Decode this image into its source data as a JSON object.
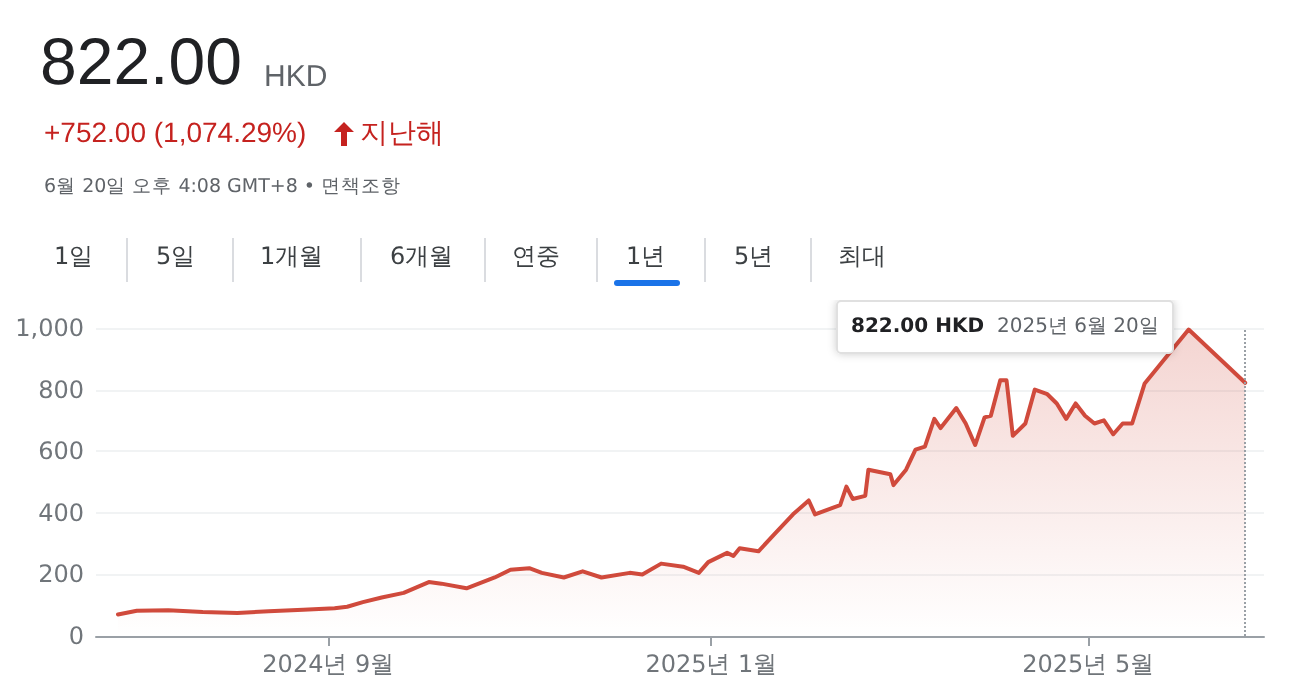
{
  "chart_data": {
    "type": "area",
    "title": "822.00",
    "annotations": [
      "HKD",
      "+752.00 (1,074.29%)",
      "지난해",
      "6월 20일 오후 4:08 GMT+8 • 면책조항",
      "822.00 HKD",
      "2025년 6월 20일",
      "1일",
      "5일",
      "1개월",
      "6개월",
      "연중",
      "1년",
      "5년",
      "최대"
    ],
    "x": [
      "2024-06-26",
      "2024-07-02",
      "2024-07-12",
      "2024-07-23",
      "2024-08-03",
      "2024-08-13",
      "2024-08-24",
      "2024-09-03",
      "2024-09-07",
      "2024-09-12",
      "2024-09-18",
      "2024-09-25",
      "2024-10-03",
      "2024-10-07",
      "2024-10-15",
      "2024-10-24",
      "2024-10-29",
      "2024-11-04",
      "2024-11-08",
      "2024-11-15",
      "2024-11-21",
      "2024-11-27",
      "2024-12-06",
      "2024-12-10",
      "2024-12-16",
      "2024-12-23",
      "2024-12-28",
      "2024-12-31",
      "2025-01-06",
      "2025-01-08",
      "2025-01-10",
      "2025-01-16",
      "2025-01-21",
      "2025-01-27",
      "2025-02-01",
      "2025-02-03",
      "2025-02-11",
      "2025-02-13",
      "2025-02-15",
      "2025-02-19",
      "2025-02-20",
      "2025-02-27",
      "2025-02-28",
      "2025-03-04",
      "2025-03-07",
      "2025-03-10",
      "2025-03-13",
      "2025-03-15",
      "2025-03-20",
      "2025-03-23",
      "2025-03-26",
      "2025-03-29",
      "2025-03-31",
      "2025-04-03",
      "2025-04-05",
      "2025-04-07",
      "2025-04-11",
      "2025-04-14",
      "2025-04-18",
      "2025-04-21",
      "2025-04-24",
      "2025-04-27",
      "2025-04-30",
      "2025-05-03",
      "2025-05-06",
      "2025-05-09",
      "2025-05-12",
      "2025-05-15",
      "2025-05-19",
      "2025-06-02",
      "2025-06-20"
    ],
    "series": [
      {
        "color": "#d04a3c",
        "values": [
          70,
          82,
          84,
          78,
          75,
          80,
          85,
          90,
          95,
          110,
          125,
          140,
          175,
          170,
          155,
          190,
          215,
          220,
          205,
          190,
          210,
          190,
          205,
          200,
          235,
          225,
          205,
          240,
          270,
          260,
          285,
          275,
          330,
          395,
          440,
          395,
          425,
          485,
          445,
          455,
          540,
          525,
          490,
          540,
          605,
          615,
          705,
          675,
          740,
          690,
          620,
          710,
          715,
          830,
          830,
          650,
          690,
          800,
          785,
          755,
          705,
          755,
          715,
          690,
          700,
          655,
          690,
          690,
          820,
          995,
          822
        ]
      }
    ],
    "xlim": [
      "2024-06-19",
      "2025-06-26"
    ],
    "xticks": [
      {
        "value": "2024-09",
        "label": "2024년 9월"
      },
      {
        "value": "2025-01",
        "label": "2025년 1월"
      },
      {
        "value": "2025-05",
        "label": "2025년 5월"
      }
    ],
    "ylim": [
      0,
      1000
    ],
    "yticks": [
      0,
      200,
      400,
      600,
      800,
      {
        "value": 1000,
        "label": "1,000"
      }
    ],
    "grid": "y",
    "marker": "none",
    "line_style": "solid",
    "ref_lines": [
      {
        "axis": "x",
        "value": "2025-06-20",
        "color": "#9aa0a6",
        "line_style": "dotted"
      }
    ]
  }
}
